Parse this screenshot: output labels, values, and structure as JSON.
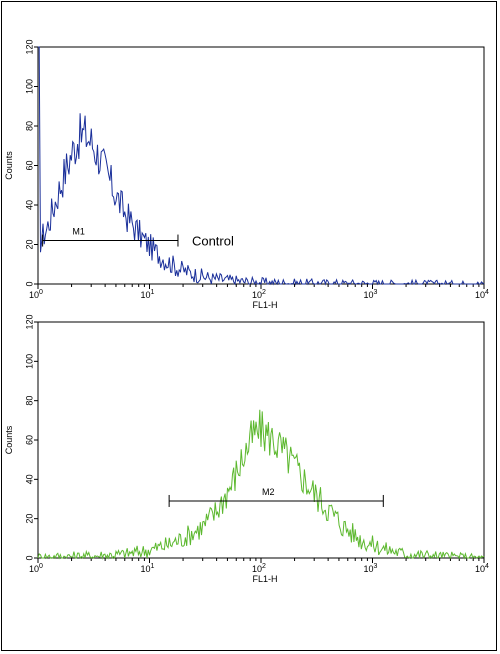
{
  "chart_data": [
    {
      "type": "line",
      "scale_x": "log",
      "xlabel": "FL1-H",
      "ylabel": "Counts",
      "xlim": [
        1,
        10000
      ],
      "ylim": [
        0,
        120
      ],
      "x_tick_labels": [
        {
          "base": "10",
          "exp": "0"
        },
        {
          "base": "10",
          "exp": "1"
        },
        {
          "base": "10",
          "exp": "2"
        },
        {
          "base": "10",
          "exp": "3"
        },
        {
          "base": "10",
          "exp": "4"
        }
      ],
      "y_ticks": [
        "0",
        "20",
        "40",
        "60",
        "80",
        "100",
        "120"
      ],
      "color": "#1a2f9a",
      "series": [
        {
          "name": "Control",
          "values": [
            {
              "x": 1.0,
              "y": 20
            },
            {
              "x": 1.2,
              "y": 28
            },
            {
              "x": 1.4,
              "y": 40
            },
            {
              "x": 1.7,
              "y": 55
            },
            {
              "x": 2.0,
              "y": 66
            },
            {
              "x": 2.3,
              "y": 74
            },
            {
              "x": 2.6,
              "y": 76
            },
            {
              "x": 3.0,
              "y": 72
            },
            {
              "x": 3.5,
              "y": 65
            },
            {
              "x": 4.2,
              "y": 55
            },
            {
              "x": 5.0,
              "y": 45
            },
            {
              "x": 6.0,
              "y": 36
            },
            {
              "x": 7.5,
              "y": 28
            },
            {
              "x": 9.0,
              "y": 22
            },
            {
              "x": 11,
              "y": 17
            },
            {
              "x": 14,
              "y": 12
            },
            {
              "x": 18,
              "y": 8
            },
            {
              "x": 25,
              "y": 5
            },
            {
              "x": 35,
              "y": 3
            },
            {
              "x": 50,
              "y": 2
            },
            {
              "x": 80,
              "y": 1
            },
            {
              "x": 150,
              "y": 0.5
            },
            {
              "x": 500,
              "y": 0.3
            },
            {
              "x": 10000,
              "y": 0
            }
          ]
        }
      ],
      "marker": {
        "label": "M1",
        "from": 1.1,
        "to": 18,
        "y": 22
      },
      "annotation": "Control"
    },
    {
      "type": "line",
      "scale_x": "log",
      "xlabel": "FL1-H",
      "ylabel": "Counts",
      "xlim": [
        1,
        10000
      ],
      "ylim": [
        0,
        120
      ],
      "x_tick_labels": [
        {
          "base": "10",
          "exp": "0"
        },
        {
          "base": "10",
          "exp": "1"
        },
        {
          "base": "10",
          "exp": "2"
        },
        {
          "base": "10",
          "exp": "3"
        },
        {
          "base": "10",
          "exp": "4"
        }
      ],
      "y_ticks": [
        "0",
        "20",
        "40",
        "60",
        "80",
        "100",
        "120"
      ],
      "color": "#5cb82e",
      "series": [
        {
          "values": [
            {
              "x": 1.0,
              "y": 0.5
            },
            {
              "x": 3,
              "y": 1
            },
            {
              "x": 6,
              "y": 2
            },
            {
              "x": 10,
              "y": 4
            },
            {
              "x": 15,
              "y": 7
            },
            {
              "x": 20,
              "y": 10
            },
            {
              "x": 30,
              "y": 16
            },
            {
              "x": 40,
              "y": 24
            },
            {
              "x": 55,
              "y": 38
            },
            {
              "x": 70,
              "y": 52
            },
            {
              "x": 85,
              "y": 62
            },
            {
              "x": 100,
              "y": 65
            },
            {
              "x": 130,
              "y": 60
            },
            {
              "x": 170,
              "y": 52
            },
            {
              "x": 230,
              "y": 42
            },
            {
              "x": 300,
              "y": 33
            },
            {
              "x": 400,
              "y": 25
            },
            {
              "x": 550,
              "y": 16
            },
            {
              "x": 800,
              "y": 9
            },
            {
              "x": 1200,
              "y": 5
            },
            {
              "x": 2000,
              "y": 2
            },
            {
              "x": 4000,
              "y": 1
            },
            {
              "x": 10000,
              "y": 0
            }
          ]
        }
      ],
      "marker": {
        "label": "M2",
        "from": 15,
        "to": 1250,
        "y": 29
      }
    }
  ]
}
